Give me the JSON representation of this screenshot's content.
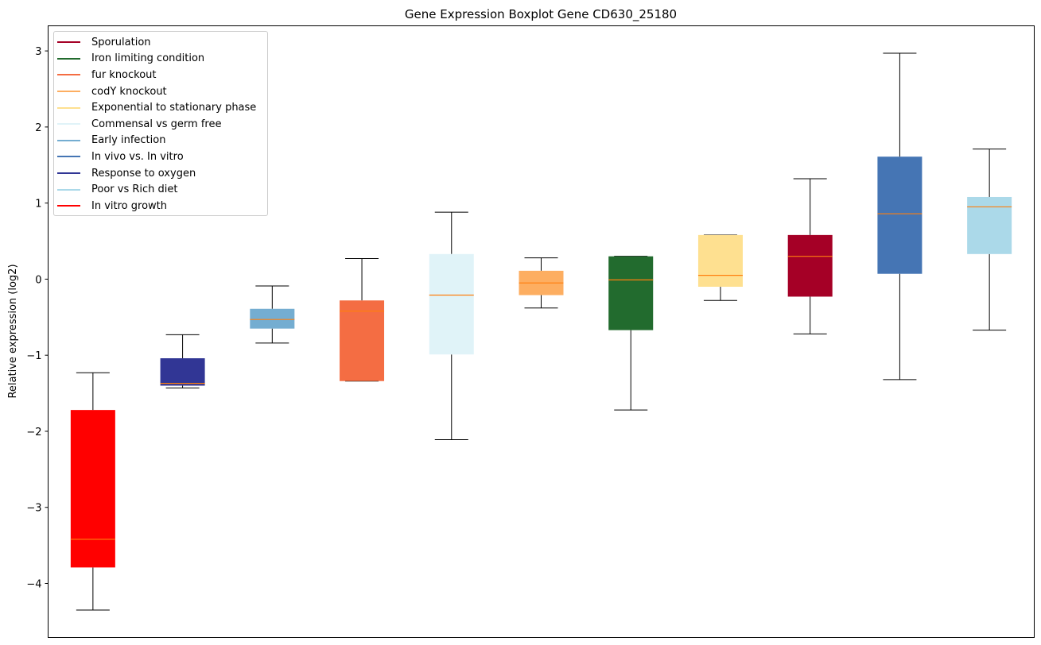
{
  "chart_data": {
    "type": "box",
    "title": "Gene Expression Boxplot Gene CD630_25180",
    "xlabel": "",
    "ylabel": "Relative expression (log2)",
    "ylim": [
      -4.71,
      3.33
    ],
    "xlim": [
      0.5,
      11.5
    ],
    "yticks": [
      -4,
      -3,
      -2,
      -1,
      0,
      1,
      2,
      3
    ],
    "ytick_labels": [
      "−4",
      "−3",
      "−2",
      "−1",
      "0",
      "1",
      "2",
      "3"
    ],
    "median_color": "#ff7f0e",
    "legend_position": "top-left",
    "legend": [
      {
        "label": "Sporulation",
        "color": "#a50026"
      },
      {
        "label": "Iron limiting condition",
        "color": "#226b2e"
      },
      {
        "label": "fur knockout",
        "color": "#f46d43"
      },
      {
        "label": "codY knockout",
        "color": "#fdae61"
      },
      {
        "label": "Exponential to stationary phase",
        "color": "#fee090"
      },
      {
        "label": "Commensal vs germ free",
        "color": "#e0f3f8"
      },
      {
        "label": "Early infection",
        "color": "#74add1"
      },
      {
        "label": "In vivo vs. In vitro",
        "color": "#4575b4"
      },
      {
        "label": "Response to oxygen",
        "color": "#313695"
      },
      {
        "label": "Poor vs Rich diet",
        "color": "#abd9e9"
      },
      {
        "label": "In vitro growth",
        "color": "#ff0000"
      }
    ],
    "boxes": [
      {
        "group": "In vitro growth",
        "color": "#ff0000",
        "whisker_low": -4.35,
        "q1": -3.79,
        "median": -3.42,
        "q3": -1.72,
        "whisker_high": -1.23
      },
      {
        "group": "Response to oxygen",
        "color": "#313695",
        "whisker_low": -1.43,
        "q1": -1.4,
        "median": -1.37,
        "q3": -1.04,
        "whisker_high": -0.73
      },
      {
        "group": "Early infection",
        "color": "#74add1",
        "whisker_low": -0.84,
        "q1": -0.65,
        "median": -0.53,
        "q3": -0.39,
        "whisker_high": -0.09
      },
      {
        "group": "fur knockout",
        "color": "#f46d43",
        "whisker_low": -1.34,
        "q1": -1.34,
        "median": -0.42,
        "q3": -0.28,
        "whisker_high": 0.27
      },
      {
        "group": "Commensal vs germ free",
        "color": "#e0f3f8",
        "whisker_low": -2.11,
        "q1": -0.99,
        "median": -0.21,
        "q3": 0.33,
        "whisker_high": 0.88
      },
      {
        "group": "codY knockout",
        "color": "#fdae61",
        "whisker_low": -0.38,
        "q1": -0.21,
        "median": -0.05,
        "q3": 0.11,
        "whisker_high": 0.28
      },
      {
        "group": "Iron limiting condition",
        "color": "#226b2e",
        "whisker_low": -1.72,
        "q1": -0.67,
        "median": -0.01,
        "q3": 0.3,
        "whisker_high": 0.3
      },
      {
        "group": "Exponential to stationary phase",
        "color": "#fee090",
        "whisker_low": -0.28,
        "q1": -0.1,
        "median": 0.05,
        "q3": 0.58,
        "whisker_high": 0.58
      },
      {
        "group": "Sporulation",
        "color": "#a50026",
        "whisker_low": -0.72,
        "q1": -0.23,
        "median": 0.3,
        "q3": 0.58,
        "whisker_high": 1.32
      },
      {
        "group": "In vivo vs. In vitro",
        "color": "#4575b4",
        "whisker_low": -1.32,
        "q1": 0.07,
        "median": 0.86,
        "q3": 1.61,
        "whisker_high": 2.97
      },
      {
        "group": "Poor vs Rich diet",
        "color": "#abd9e9",
        "whisker_low": -0.67,
        "q1": 0.33,
        "median": 0.95,
        "q3": 1.08,
        "whisker_high": 1.71
      }
    ]
  }
}
